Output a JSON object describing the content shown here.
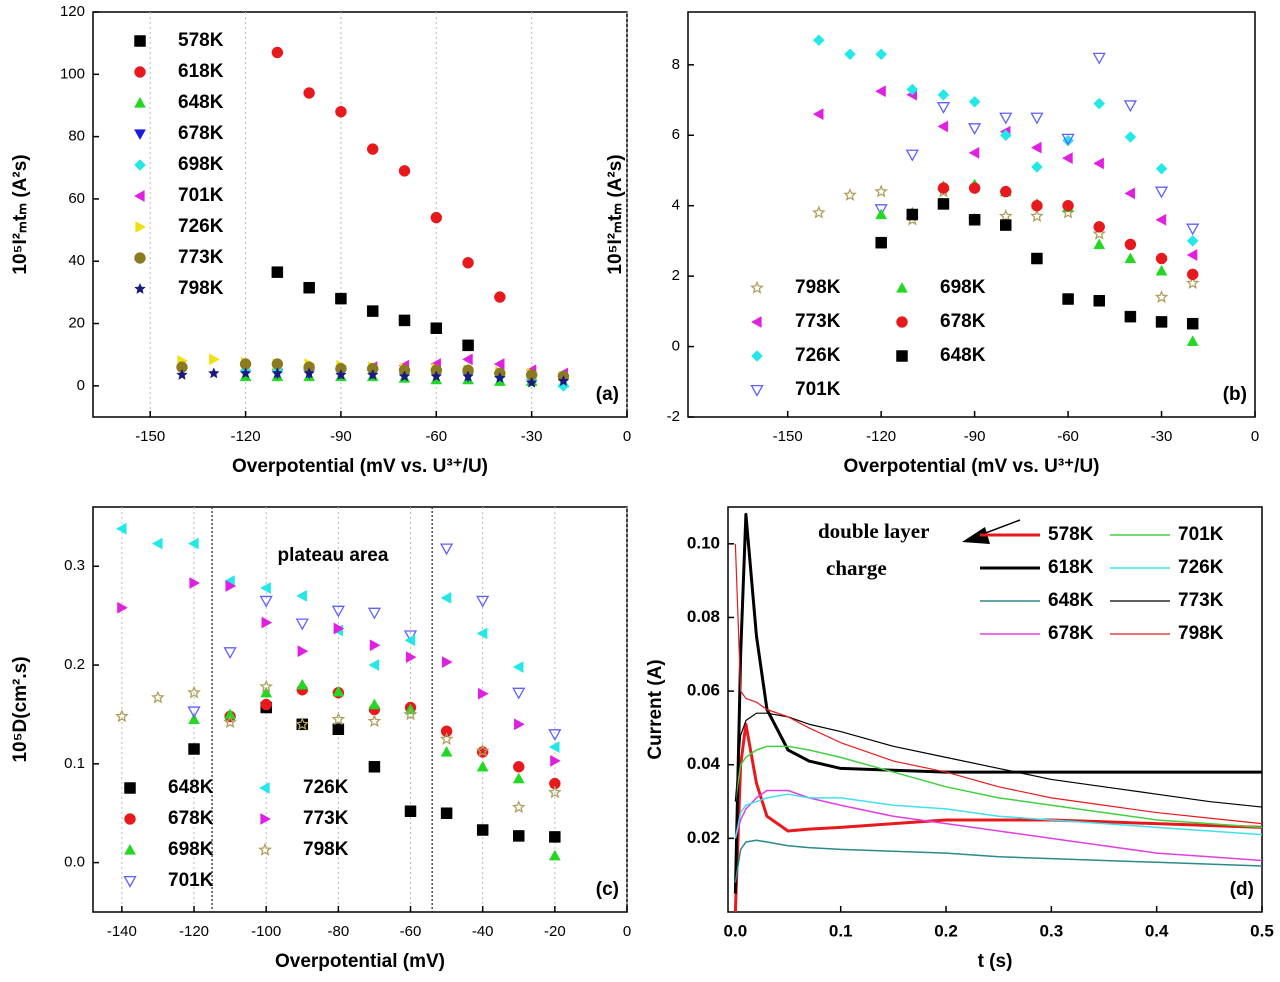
{
  "chart_data": [
    {
      "type": "scatter",
      "panel_label": "(a)",
      "x_label": "Overpotential (mV vs. U³⁺/U)",
      "y_label": "10⁵I²ₘtₘ (A²s)",
      "xlim": [
        -168,
        0
      ],
      "ylim": [
        -10,
        120
      ],
      "xticks": [
        -150,
        -120,
        -90,
        -60,
        -30,
        0
      ],
      "yticks": [
        0,
        20,
        40,
        60,
        80,
        100,
        120
      ],
      "grid": true,
      "series": [
        {
          "name": "578K",
          "color": "#000000",
          "marker": "square",
          "filled": true,
          "x": [
            -110,
            -100,
            -90,
            -80,
            -70,
            -60,
            -50
          ],
          "values": [
            36.5,
            31.5,
            28,
            24,
            21,
            18.5,
            13
          ]
        },
        {
          "name": "618K",
          "color": "#e8191c",
          "marker": "circle",
          "filled": true,
          "x": [
            -110,
            -100,
            -90,
            -80,
            -70,
            -60,
            -50,
            -40
          ],
          "values": [
            107,
            94,
            88,
            76,
            69,
            54,
            39.5,
            28.5
          ]
        },
        {
          "name": "648K",
          "color": "#22d822",
          "marker": "triangle-up",
          "filled": true,
          "x": [
            -120,
            -110,
            -100,
            -90,
            -80,
            -70,
            -60,
            -50,
            -40,
            -30,
            -20
          ],
          "values": [
            3,
            3,
            3,
            3,
            3,
            2.5,
            2,
            2,
            1.5,
            1.5,
            1
          ]
        },
        {
          "name": "678K",
          "color": "#1a1ae6",
          "marker": "triangle-down",
          "filled": true,
          "x": [
            -110,
            -100,
            -90,
            -80,
            -70,
            -60,
            -50,
            -40,
            -30,
            -20
          ],
          "values": [
            4,
            4,
            4,
            4,
            4,
            4,
            3,
            3,
            2,
            2
          ]
        },
        {
          "name": "698K",
          "color": "#22e8e8",
          "marker": "diamond",
          "filled": true,
          "x": [
            -120,
            -110,
            -100,
            -90,
            -80,
            -70,
            -60,
            -50,
            -40,
            -30,
            -20
          ],
          "values": [
            5,
            5,
            5,
            5,
            5,
            4,
            4,
            4,
            3,
            2,
            0
          ]
        },
        {
          "name": "701K",
          "color": "#e020e0",
          "marker": "triangle-left",
          "filled": true,
          "x": [
            -80,
            -70,
            -60,
            -50,
            -40,
            -30,
            -20
          ],
          "values": [
            6,
            6.5,
            7,
            8.5,
            7,
            5,
            4
          ]
        },
        {
          "name": "726K",
          "color": "#f0e010",
          "marker": "triangle-right",
          "filled": true,
          "x": [
            -140,
            -130,
            -120,
            -110,
            -100,
            -90,
            -80,
            -70,
            -60,
            -50,
            -40,
            -30,
            -20
          ],
          "values": [
            8,
            8.5,
            7.5,
            7,
            7,
            6.5,
            6,
            5.5,
            5.5,
            5,
            4.5,
            4,
            3
          ]
        },
        {
          "name": "773K",
          "color": "#8a7a20",
          "marker": "circle",
          "filled": true,
          "x": [
            -140,
            -120,
            -110,
            -100,
            -90,
            -80,
            -70,
            -60,
            -50,
            -40,
            -30,
            -20
          ],
          "values": [
            6,
            7,
            7,
            6,
            5.5,
            5.5,
            5,
            5,
            5,
            4,
            3.5,
            3
          ]
        },
        {
          "name": "798K",
          "color": "#1a1a80",
          "marker": "star",
          "filled": true,
          "x": [
            -140,
            -130,
            -120,
            -110,
            -100,
            -90,
            -80,
            -70,
            -60,
            -50,
            -40,
            -30,
            -20
          ],
          "values": [
            3.5,
            4,
            4,
            4,
            4,
            3.5,
            3.5,
            3,
            3,
            3,
            2.5,
            1,
            1.5
          ]
        }
      ]
    },
    {
      "type": "scatter",
      "panel_label": "(b)",
      "x_label": "Overpotential (mV vs. U³⁺/U)",
      "y_label": "10⁵I²ₘtₘ (A²s)",
      "xlim": [
        -182,
        0
      ],
      "ylim": [
        -2,
        9.5
      ],
      "xticks": [
        -150,
        -120,
        -90,
        -60,
        -30,
        0
      ],
      "yticks": [
        -2,
        0,
        2,
        4,
        6,
        8
      ],
      "grid": false,
      "series": [
        {
          "name": "798K",
          "color": "#b0a060",
          "marker": "star",
          "filled": false,
          "x": [
            -140,
            -130,
            -120,
            -110,
            -100,
            -90,
            -80,
            -70,
            -60,
            -50,
            -30,
            -20
          ],
          "values": [
            3.8,
            4.3,
            4.4,
            3.6,
            4.4,
            3.6,
            3.7,
            3.7,
            3.8,
            3.2,
            1.4,
            1.8
          ]
        },
        {
          "name": "773K",
          "color": "#e020e0",
          "marker": "triangle-left",
          "filled": true,
          "x": [
            -140,
            -120,
            -110,
            -100,
            -90,
            -80,
            -70,
            -60,
            -50,
            -40,
            -30,
            -20
          ],
          "values": [
            6.6,
            7.25,
            7.15,
            6.25,
            5.5,
            6.1,
            5.65,
            5.35,
            5.2,
            4.35,
            3.6,
            2.6
          ]
        },
        {
          "name": "726K",
          "color": "#22e8e8",
          "marker": "diamond",
          "filled": true,
          "x": [
            -140,
            -130,
            -120,
            -110,
            -100,
            -90,
            -80,
            -70,
            -60,
            -50,
            -40,
            -30,
            -20
          ],
          "values": [
            8.7,
            8.3,
            8.3,
            7.3,
            7.15,
            6.95,
            6,
            5.1,
            5.85,
            6.9,
            5.95,
            5.05,
            3
          ]
        },
        {
          "name": "701K",
          "color": "#6060ff",
          "marker": "triangle-down",
          "filled": false,
          "x": [
            -120,
            -110,
            -100,
            -90,
            -80,
            -70,
            -60,
            -50,
            -40,
            -30,
            -20
          ],
          "values": [
            3.9,
            5.45,
            6.8,
            6.2,
            6.5,
            6.5,
            5.9,
            8.2,
            6.85,
            4.4,
            3.35
          ]
        },
        {
          "name": "698K",
          "color": "#22d822",
          "marker": "triangle-up",
          "filled": true,
          "x": [
            -120,
            -110,
            -100,
            -90,
            -80,
            -70,
            -60,
            -50,
            -40,
            -30,
            -20
          ],
          "values": [
            3.75,
            3.8,
            4.55,
            4.6,
            4.4,
            4.05,
            3.95,
            2.9,
            2.5,
            2.15,
            0.15
          ]
        },
        {
          "name": "678K",
          "color": "#e8191c",
          "marker": "circle",
          "filled": true,
          "x": [
            -100,
            -90,
            -80,
            -70,
            -60,
            -50,
            -40,
            -30,
            -20
          ],
          "values": [
            4.5,
            4.5,
            4.4,
            4,
            4,
            3.4,
            2.9,
            2.5,
            2.05
          ]
        },
        {
          "name": "648K",
          "color": "#000000",
          "marker": "square",
          "filled": true,
          "x": [
            -120,
            -110,
            -100,
            -90,
            -80,
            -70,
            -60,
            -50,
            -40,
            -30,
            -20
          ],
          "values": [
            2.95,
            3.75,
            4.05,
            3.6,
            3.45,
            2.5,
            1.35,
            1.3,
            0.85,
            0.7,
            0.65
          ]
        }
      ]
    },
    {
      "type": "scatter",
      "panel_label": "(c)",
      "x_label": "Overpotential (mV)",
      "y_label": "10⁵D(cm².s)",
      "annotation": "plateau area",
      "vlines": [
        -115,
        -54
      ],
      "xlim": [
        -148,
        0
      ],
      "ylim": [
        -0.05,
        0.36
      ],
      "xticks": [
        -140,
        -120,
        -100,
        -80,
        -60,
        -40,
        -20,
        0
      ],
      "yticks": [
        {
          "value": 0,
          "label": "0.0"
        },
        0.1,
        0.2,
        0.3
      ],
      "grid": true,
      "series": [
        {
          "name": "648K",
          "color": "#000000",
          "marker": "square",
          "filled": true,
          "x": [
            -120,
            -100,
            -90,
            -80,
            -70,
            -60,
            -50,
            -40,
            -30,
            -20
          ],
          "values": [
            0.115,
            0.157,
            0.14,
            0.135,
            0.097,
            0.052,
            0.05,
            0.033,
            0.027,
            0.026
          ]
        },
        {
          "name": "678K",
          "color": "#e8191c",
          "marker": "circle",
          "filled": true,
          "x": [
            -110,
            -100,
            -90,
            -80,
            -70,
            -60,
            -50,
            -40,
            -30,
            -20
          ],
          "values": [
            0.148,
            0.16,
            0.175,
            0.172,
            0.155,
            0.157,
            0.133,
            0.112,
            0.097,
            0.08
          ]
        },
        {
          "name": "698K",
          "color": "#22d822",
          "marker": "triangle-up",
          "filled": true,
          "x": [
            -120,
            -110,
            -100,
            -90,
            -80,
            -70,
            -60,
            -50,
            -40,
            -30,
            -20
          ],
          "values": [
            0.145,
            0.15,
            0.172,
            0.18,
            0.173,
            0.16,
            0.155,
            0.112,
            0.097,
            0.085,
            0.007
          ]
        },
        {
          "name": "701K",
          "color": "#6060ff",
          "marker": "triangle-down",
          "filled": false,
          "x": [
            -120,
            -110,
            -100,
            -90,
            -80,
            -70,
            -60,
            -50,
            -40,
            -30,
            -20
          ],
          "values": [
            0.153,
            0.213,
            0.265,
            0.242,
            0.255,
            0.253,
            0.23,
            0.318,
            0.265,
            0.172,
            0.13
          ]
        },
        {
          "name": "726K",
          "color": "#22e8e8",
          "marker": "triangle-left",
          "filled": true,
          "x": [
            -140,
            -130,
            -120,
            -110,
            -100,
            -90,
            -80,
            -70,
            -60,
            -50,
            -40,
            -30,
            -20
          ],
          "values": [
            0.338,
            0.323,
            0.323,
            0.285,
            0.278,
            0.27,
            0.235,
            0.2,
            0.225,
            0.268,
            0.232,
            0.198,
            0.117
          ]
        },
        {
          "name": "773K",
          "color": "#e020e0",
          "marker": "triangle-right",
          "filled": true,
          "x": [
            -140,
            -120,
            -110,
            -100,
            -90,
            -80,
            -70,
            -60,
            -50,
            -40,
            -30,
            -20
          ],
          "values": [
            0.258,
            0.283,
            0.28,
            0.243,
            0.214,
            0.237,
            0.22,
            0.208,
            0.203,
            0.171,
            0.14,
            0.103
          ]
        },
        {
          "name": "798K",
          "color": "#b0a060",
          "marker": "star",
          "filled": false,
          "x": [
            -140,
            -130,
            -120,
            -110,
            -100,
            -90,
            -80,
            -70,
            -60,
            -50,
            -40,
            -30,
            -20
          ],
          "values": [
            0.148,
            0.167,
            0.172,
            0.142,
            0.178,
            0.14,
            0.145,
            0.143,
            0.15,
            0.125,
            0.113,
            0.056,
            0.071
          ]
        }
      ]
    },
    {
      "type": "line",
      "panel_label": "(d)",
      "x_label": "t (s)",
      "y_label": "Current (A)",
      "annotation": [
        "double layer",
        "charge"
      ],
      "xlim": [
        -0.007,
        0.5
      ],
      "ylim": [
        0,
        0.11
      ],
      "xticks": [
        {
          "value": 0,
          "label": "0.0"
        },
        0.1,
        0.2,
        0.3,
        0.4,
        0.5
      ],
      "yticks": [
        0.02,
        0.04,
        0.06,
        0.08,
        {
          "value": 0.1,
          "label": "0.10"
        }
      ],
      "grid": false,
      "x": [
        0,
        0.005,
        0.01,
        0.02,
        0.03,
        0.05,
        0.07,
        0.1,
        0.15,
        0.2,
        0.25,
        0.3,
        0.35,
        0.4,
        0.45,
        0.5
      ],
      "series": [
        {
          "name": "578K",
          "color": "#e8191c",
          "width": 3,
          "values": [
            0,
            0.04,
            0.051,
            0.035,
            0.026,
            0.022,
            0.0225,
            0.023,
            0.024,
            0.025,
            0.025,
            0.025,
            0.0245,
            0.024,
            0.0235,
            0.023
          ]
        },
        {
          "name": "618K",
          "color": "#000000",
          "width": 3,
          "values": [
            0.005,
            0.07,
            0.108,
            0.075,
            0.055,
            0.044,
            0.041,
            0.039,
            0.0385,
            0.038,
            0.038,
            0.038,
            0.038,
            0.038,
            0.038,
            0.038
          ]
        },
        {
          "name": "648K",
          "color": "#2a8a8a",
          "width": 1.5,
          "values": [
            0.008,
            0.017,
            0.019,
            0.0195,
            0.019,
            0.018,
            0.0175,
            0.017,
            0.0165,
            0.016,
            0.015,
            0.0145,
            0.014,
            0.0135,
            0.013,
            0.0125
          ]
        },
        {
          "name": "678K",
          "color": "#e040e0",
          "width": 1.5,
          "values": [
            0.02,
            0.025,
            0.028,
            0.031,
            0.033,
            0.033,
            0.031,
            0.029,
            0.026,
            0.024,
            0.022,
            0.02,
            0.018,
            0.016,
            0.015,
            0.014
          ]
        },
        {
          "name": "701K",
          "color": "#40d040",
          "width": 1.5,
          "values": [
            0.03,
            0.04,
            0.042,
            0.044,
            0.045,
            0.045,
            0.044,
            0.042,
            0.038,
            0.034,
            0.031,
            0.029,
            0.027,
            0.025,
            0.024,
            0.023
          ]
        },
        {
          "name": "726K",
          "color": "#40e0f0",
          "width": 1.5,
          "values": [
            0.02,
            0.027,
            0.029,
            0.03,
            0.031,
            0.032,
            0.031,
            0.031,
            0.029,
            0.028,
            0.026,
            0.025,
            0.024,
            0.023,
            0.022,
            0.021
          ]
        },
        {
          "name": "773K",
          "color": "#000000",
          "width": 1.2,
          "values": [
            0.03,
            0.048,
            0.052,
            0.054,
            0.054,
            0.053,
            0.051,
            0.049,
            0.045,
            0.042,
            0.039,
            0.036,
            0.034,
            0.032,
            0.03,
            0.0285
          ]
        },
        {
          "name": "798K",
          "color": "#e8191c",
          "width": 1.2,
          "values": [
            0.1,
            0.06,
            0.058,
            0.057,
            0.055,
            0.053,
            0.05,
            0.046,
            0.041,
            0.038,
            0.034,
            0.031,
            0.029,
            0.027,
            0.0255,
            0.024
          ]
        }
      ]
    }
  ]
}
